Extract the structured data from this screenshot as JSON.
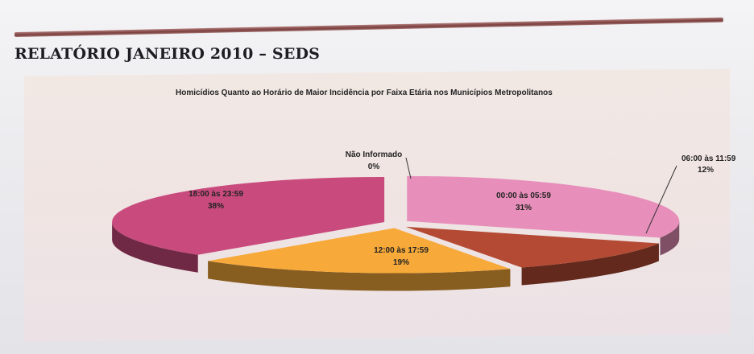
{
  "header": {
    "report_title": "RELATÓRIO JANEIRO 2010 – SEDS"
  },
  "chart_data": {
    "type": "pie",
    "title": "Homicídios Quanto ao Horário de Maior Incidência por Faixa Etária nos Municípios Metropolitanos",
    "slices": [
      {
        "label": "00:00 às 05:59",
        "value": 31,
        "display": "31%",
        "color": "#e78fba"
      },
      {
        "label": "06:00 às 11:59",
        "value": 12,
        "display": "12%",
        "color": "#b44a33"
      },
      {
        "label": "12:00 às 17:59",
        "value": 19,
        "display": "19%",
        "color": "#f7a93a"
      },
      {
        "label": "18:00 às 23:59",
        "value": 38,
        "display": "38%",
        "color": "#c94b7e"
      },
      {
        "label": "Não Informado",
        "value": 0,
        "display": "0%",
        "color": "#e3e0e0"
      }
    ]
  }
}
